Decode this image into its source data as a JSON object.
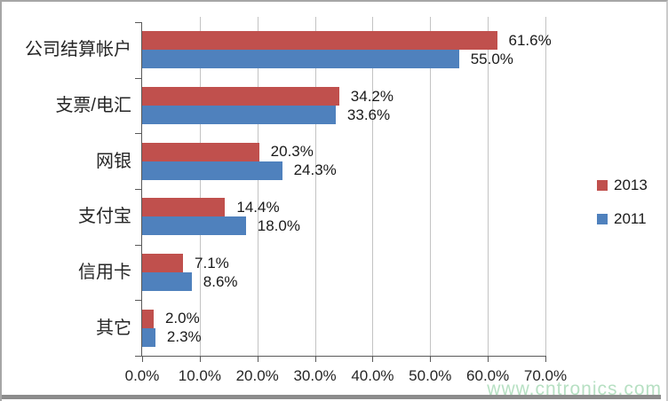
{
  "chart_data": {
    "type": "bar",
    "orientation": "horizontal",
    "categories": [
      "公司结算帐户",
      "支票/电汇",
      "网银",
      "支付宝",
      "信用卡",
      "其它"
    ],
    "series": [
      {
        "name": "2013",
        "color": "#C0504D",
        "values": [
          61.6,
          34.2,
          20.3,
          14.4,
          7.1,
          2.0
        ],
        "labels": [
          "61.6%",
          "34.2%",
          "20.3%",
          "14.4%",
          "7.1%",
          "2.0%"
        ]
      },
      {
        "name": "2011",
        "color": "#4F81BD",
        "values": [
          55.0,
          33.6,
          24.3,
          18.0,
          8.6,
          2.3
        ],
        "labels": [
          "55.0%",
          "33.6%",
          "24.3%",
          "18.0%",
          "8.6%",
          "2.3%"
        ]
      }
    ],
    "xlim": [
      0,
      70
    ],
    "x_ticks": [
      "0.0%",
      "10.0%",
      "20.0%",
      "30.0%",
      "40.0%",
      "50.0%",
      "60.0%",
      "70.0%"
    ],
    "grid": true,
    "legend_position": "right",
    "gridline_color": "#c3c3c3",
    "axis_color": "#595959"
  },
  "legend": {
    "items": [
      {
        "label": "2013",
        "color": "#C0504D"
      },
      {
        "label": "2011",
        "color": "#4F81BD"
      }
    ]
  },
  "watermark": {
    "text": "www.cntronics.com",
    "color": "#b7e0c3"
  }
}
